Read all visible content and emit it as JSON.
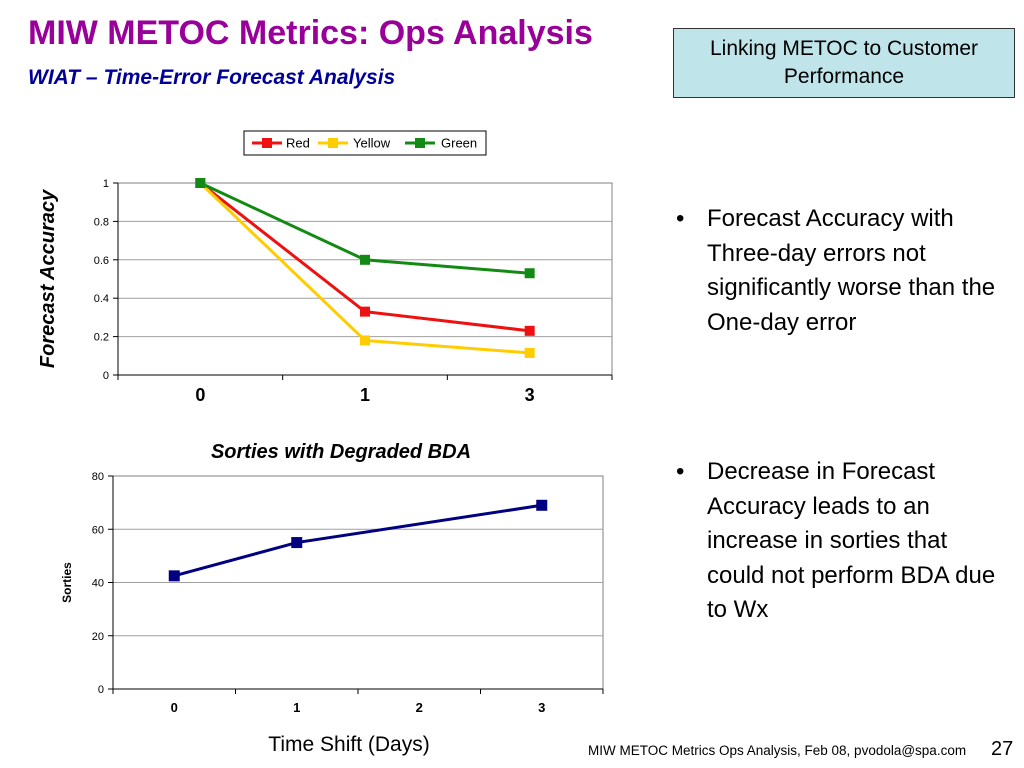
{
  "slide": {
    "title": "MIW METOC Metrics:  Ops Analysis",
    "subtitle": "WIAT – Time-Error Forecast Analysis",
    "callout": "Linking METOC to Customer Performance",
    "bullets": [
      "Forecast Accuracy with Three-day errors not significantly worse than the One-day error",
      "Decrease in Forecast Accuracy leads to an increase in sorties that could not perform BDA due to Wx"
    ],
    "bullet_glyph": "•",
    "footer": "MIW METOC Metrics Ops Analysis, Feb 08, pvodola@spa.com",
    "page_number": "27"
  },
  "chart_data": [
    {
      "type": "line",
      "title": "",
      "xlabel": "",
      "ylabel": "Forecast Accuracy",
      "categories": [
        "0",
        "1",
        "3"
      ],
      "ylim": [
        0,
        1
      ],
      "yticks": [
        "0",
        "0.2",
        "0.4",
        "0.6",
        "0.8",
        "1"
      ],
      "legend": "top-center",
      "grid": true,
      "series": [
        {
          "name": "Red",
          "color": "#ee1111",
          "values": [
            1.0,
            0.33,
            0.23
          ]
        },
        {
          "name": "Yellow",
          "color": "#ffcc00",
          "values": [
            1.0,
            0.18,
            0.115
          ]
        },
        {
          "name": "Green",
          "color": "#138a13",
          "values": [
            1.0,
            0.6,
            0.53
          ]
        }
      ]
    },
    {
      "type": "line",
      "title": "Sorties with Degraded BDA",
      "xlabel": "Time Shift (Days)",
      "ylabel": "Sorties",
      "categories": [
        "0",
        "1",
        "2",
        "3"
      ],
      "ylim": [
        0,
        80
      ],
      "yticks": [
        "0",
        "20",
        "40",
        "60",
        "80"
      ],
      "grid": true,
      "series": [
        {
          "color": "#000080",
          "x": [
            0,
            1,
            3
          ],
          "values": [
            42.5,
            55,
            69
          ]
        }
      ]
    }
  ]
}
